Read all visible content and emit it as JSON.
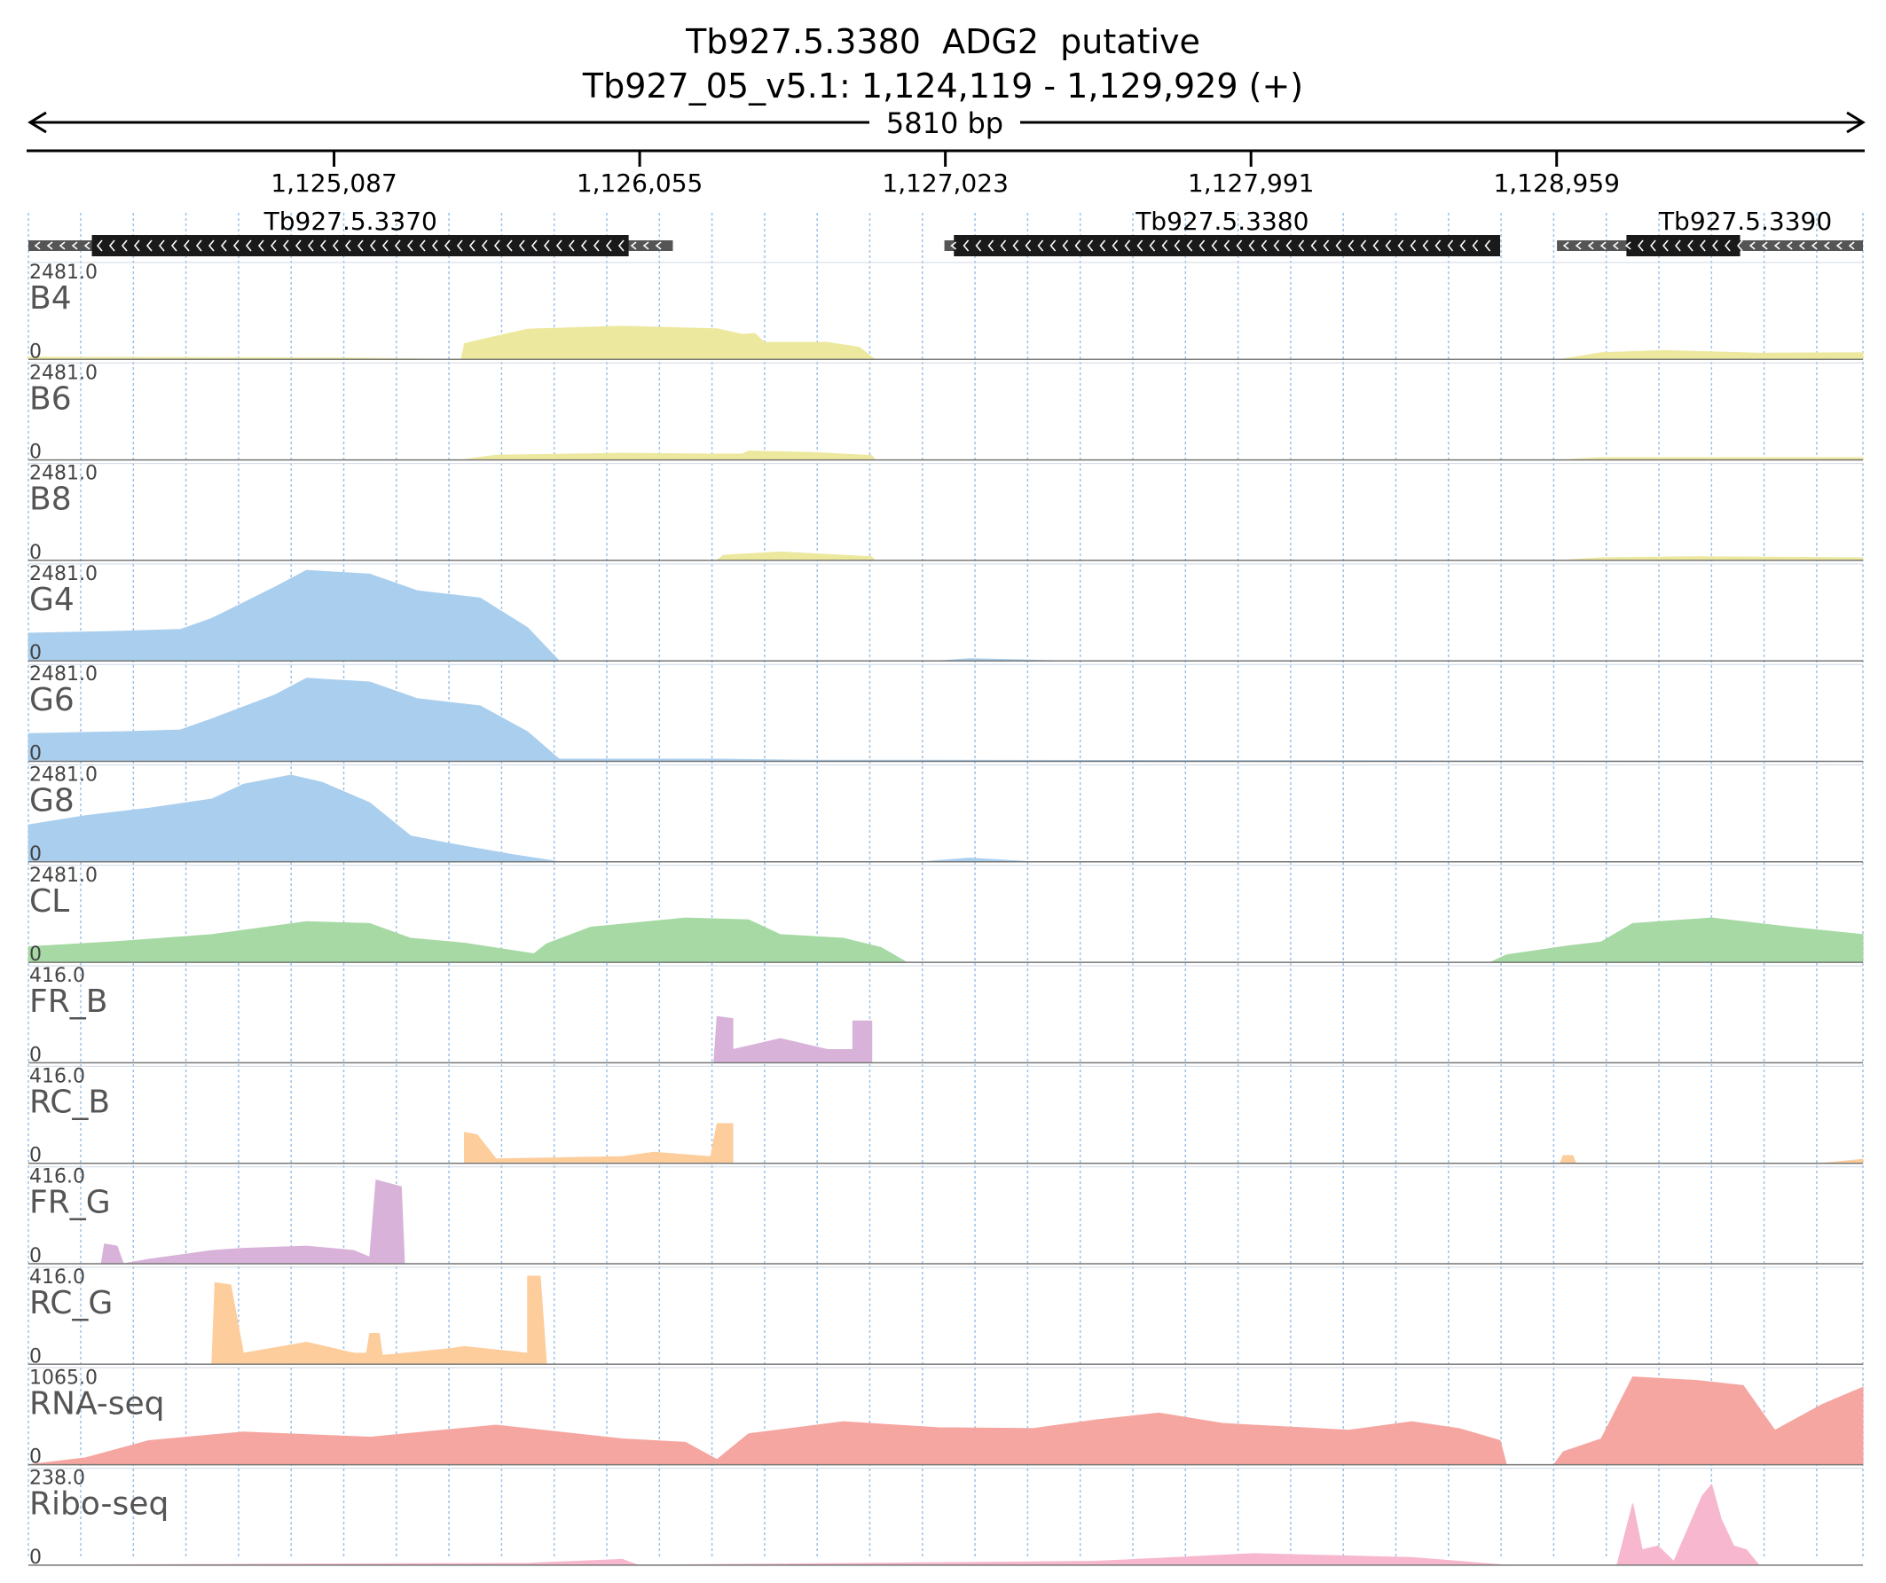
{
  "title": {
    "line1": "Tb927.5.3380  ADG2  putative",
    "line2": "Tb927_05_v5.1: 1,124,119 - 1,129,929 (+)"
  },
  "span_label": "5810 bp",
  "chart_data": {
    "type": "area",
    "region": {
      "chromosome": "Tb927_05_v5.1",
      "start": 1124119,
      "end": 1129929,
      "strand": "+"
    },
    "x_ticks": [
      1125087,
      1126055,
      1127023,
      1127991,
      1128959
    ],
    "x_tick_labels": [
      "1,125,087",
      "1,126,055",
      "1,127,023",
      "1,127,991",
      "1,128,959"
    ],
    "grid": true,
    "genes": [
      {
        "name": "Tb927.5.3370",
        "utr": [
          1124119,
          1126160
        ],
        "cds": [
          1124320,
          1126020
        ],
        "strand": "-"
      },
      {
        "name": "Tb927.5.3380",
        "utr": [
          1127020,
          1128780
        ],
        "cds": [
          1127050,
          1128780
        ],
        "strand": "-"
      },
      {
        "name": "Tb927.5.3390",
        "utr": [
          1128960,
          1129929
        ],
        "cds": [
          1129180,
          1129540
        ],
        "strand": "-"
      }
    ],
    "tracks": [
      {
        "name": "B4",
        "max_label": "2481.0",
        "min_label": "0",
        "color": "#ece89e",
        "points": [
          [
            1124119,
            60
          ],
          [
            1125100,
            40
          ],
          [
            1125500,
            0
          ],
          [
            1125490,
            0
          ],
          [
            1125500,
            430
          ],
          [
            1125700,
            820
          ],
          [
            1126000,
            900
          ],
          [
            1126300,
            830
          ],
          [
            1126380,
            680
          ],
          [
            1126420,
            700
          ],
          [
            1126450,
            460
          ],
          [
            1126650,
            460
          ],
          [
            1126750,
            330
          ],
          [
            1126800,
            0
          ],
          [
            1128970,
            0
          ],
          [
            1129100,
            180
          ],
          [
            1129300,
            240
          ],
          [
            1129600,
            170
          ],
          [
            1129929,
            180
          ]
        ]
      },
      {
        "name": "B6",
        "max_label": "2481.0",
        "min_label": "0",
        "color": "#ece89e",
        "points": [
          [
            1125490,
            0
          ],
          [
            1125600,
            130
          ],
          [
            1126000,
            180
          ],
          [
            1126300,
            160
          ],
          [
            1126380,
            160
          ],
          [
            1126400,
            240
          ],
          [
            1126600,
            200
          ],
          [
            1126790,
            120
          ],
          [
            1126800,
            0
          ],
          [
            1128970,
            0
          ],
          [
            1129100,
            60
          ],
          [
            1129929,
            60
          ]
        ]
      },
      {
        "name": "B8",
        "max_label": "2481.0",
        "min_label": "0",
        "color": "#ece89e",
        "points": [
          [
            1126300,
            0
          ],
          [
            1126320,
            140
          ],
          [
            1126500,
            230
          ],
          [
            1126650,
            160
          ],
          [
            1126790,
            100
          ],
          [
            1126800,
            0
          ],
          [
            1128970,
            0
          ],
          [
            1129100,
            70
          ],
          [
            1129400,
            100
          ],
          [
            1129929,
            70
          ]
        ]
      },
      {
        "name": "G4",
        "max_label": "2481.0",
        "min_label": "0",
        "color": "#aacfee",
        "points": [
          [
            1124119,
            750
          ],
          [
            1124400,
            800
          ],
          [
            1124600,
            850
          ],
          [
            1124700,
            1150
          ],
          [
            1124900,
            2000
          ],
          [
            1125000,
            2450
          ],
          [
            1125200,
            2350
          ],
          [
            1125350,
            1900
          ],
          [
            1125550,
            1700
          ],
          [
            1125700,
            900
          ],
          [
            1125800,
            0
          ],
          [
            1127000,
            0
          ],
          [
            1127100,
            60
          ],
          [
            1127400,
            0
          ],
          [
            1129929,
            0
          ]
        ]
      },
      {
        "name": "G6",
        "max_label": "2481.0",
        "min_label": "0",
        "color": "#aacfee",
        "points": [
          [
            1124119,
            750
          ],
          [
            1124400,
            800
          ],
          [
            1124600,
            850
          ],
          [
            1124700,
            1150
          ],
          [
            1124900,
            1800
          ],
          [
            1125000,
            2250
          ],
          [
            1125200,
            2150
          ],
          [
            1125350,
            1700
          ],
          [
            1125550,
            1500
          ],
          [
            1125700,
            800
          ],
          [
            1125800,
            60
          ],
          [
            1126300,
            60
          ],
          [
            1126600,
            30
          ],
          [
            1127000,
            30
          ],
          [
            1129929,
            0
          ]
        ]
      },
      {
        "name": "G8",
        "max_label": "2481.0",
        "min_label": "0",
        "color": "#aacfee",
        "points": [
          [
            1124119,
            1000
          ],
          [
            1124300,
            1250
          ],
          [
            1124500,
            1450
          ],
          [
            1124700,
            1700
          ],
          [
            1124800,
            2100
          ],
          [
            1124950,
            2350
          ],
          [
            1125050,
            2150
          ],
          [
            1125200,
            1600
          ],
          [
            1125330,
            700
          ],
          [
            1125450,
            500
          ],
          [
            1125650,
            200
          ],
          [
            1125800,
            0
          ],
          [
            1126950,
            0
          ],
          [
            1127100,
            100
          ],
          [
            1127300,
            0
          ],
          [
            1129929,
            0
          ]
        ]
      },
      {
        "name": "CL",
        "max_label": "2481.0",
        "min_label": "0",
        "color": "#a6d9a4",
        "points": [
          [
            1124119,
            420
          ],
          [
            1124400,
            560
          ],
          [
            1124700,
            750
          ],
          [
            1125000,
            1100
          ],
          [
            1125200,
            1050
          ],
          [
            1125330,
            650
          ],
          [
            1125500,
            520
          ],
          [
            1125720,
            230
          ],
          [
            1125760,
            500
          ],
          [
            1125900,
            950
          ],
          [
            1126200,
            1200
          ],
          [
            1126400,
            1150
          ],
          [
            1126500,
            750
          ],
          [
            1126700,
            650
          ],
          [
            1126820,
            400
          ],
          [
            1126900,
            0
          ],
          [
            1128750,
            0
          ],
          [
            1128800,
            200
          ],
          [
            1129000,
            450
          ],
          [
            1129100,
            550
          ],
          [
            1129200,
            1050
          ],
          [
            1129450,
            1200
          ],
          [
            1129700,
            950
          ],
          [
            1129929,
            750
          ]
        ]
      },
      {
        "name": "FR_B",
        "max_label": "416.0",
        "min_label": "0",
        "color": "#d8b2d8",
        "points": [
          [
            1126290,
            0
          ],
          [
            1126300,
            210
          ],
          [
            1126350,
            200
          ],
          [
            1126350,
            60
          ],
          [
            1126500,
            110
          ],
          [
            1126650,
            60
          ],
          [
            1126730,
            60
          ],
          [
            1126730,
            190
          ],
          [
            1126790,
            190
          ],
          [
            1126790,
            0
          ]
        ]
      },
      {
        "name": "RC_B",
        "max_label": "416.0",
        "min_label": "0",
        "color": "#fdcd9c",
        "points": [
          [
            1125500,
            0
          ],
          [
            1125500,
            140
          ],
          [
            1125540,
            130
          ],
          [
            1125600,
            20
          ],
          [
            1126000,
            30
          ],
          [
            1126100,
            50
          ],
          [
            1126280,
            30
          ],
          [
            1126300,
            180
          ],
          [
            1126350,
            180
          ],
          [
            1126350,
            0
          ],
          [
            1128970,
            0
          ],
          [
            1128980,
            35
          ],
          [
            1129010,
            35
          ],
          [
            1129020,
            0
          ],
          [
            1129800,
            0
          ],
          [
            1129929,
            18
          ]
        ]
      },
      {
        "name": "FR_G",
        "max_label": "416.0",
        "min_label": "0",
        "color": "#d8b2d8",
        "points": [
          [
            1124350,
            0
          ],
          [
            1124360,
            90
          ],
          [
            1124400,
            80
          ],
          [
            1124420,
            0
          ],
          [
            1124500,
            20
          ],
          [
            1124700,
            60
          ],
          [
            1124800,
            70
          ],
          [
            1125000,
            80
          ],
          [
            1125150,
            60
          ],
          [
            1125200,
            30
          ],
          [
            1125220,
            380
          ],
          [
            1125300,
            350
          ],
          [
            1125310,
            0
          ]
        ]
      },
      {
        "name": "RC_G",
        "max_label": "416.0",
        "min_label": "0",
        "color": "#fdcd9c",
        "points": [
          [
            1124700,
            0
          ],
          [
            1124710,
            370
          ],
          [
            1124760,
            360
          ],
          [
            1124800,
            50
          ],
          [
            1125000,
            100
          ],
          [
            1125150,
            50
          ],
          [
            1125190,
            50
          ],
          [
            1125200,
            140
          ],
          [
            1125230,
            140
          ],
          [
            1125240,
            40
          ],
          [
            1125450,
            70
          ],
          [
            1125500,
            80
          ],
          [
            1125700,
            50
          ],
          [
            1125700,
            400
          ],
          [
            1125740,
            400
          ],
          [
            1125760,
            0
          ]
        ]
      },
      {
        "name": "RNA-seq",
        "max_label": "1065.0",
        "min_label": "0",
        "color": "#f6a6a1",
        "points": [
          [
            1124119,
            0
          ],
          [
            1124300,
            80
          ],
          [
            1124500,
            280
          ],
          [
            1124800,
            380
          ],
          [
            1125200,
            320
          ],
          [
            1125600,
            460
          ],
          [
            1125800,
            380
          ],
          [
            1126000,
            300
          ],
          [
            1126200,
            260
          ],
          [
            1126300,
            60
          ],
          [
            1126400,
            360
          ],
          [
            1126700,
            500
          ],
          [
            1127000,
            430
          ],
          [
            1127300,
            420
          ],
          [
            1127500,
            520
          ],
          [
            1127700,
            600
          ],
          [
            1127900,
            480
          ],
          [
            1128100,
            440
          ],
          [
            1128300,
            400
          ],
          [
            1128500,
            500
          ],
          [
            1128650,
            420
          ],
          [
            1128780,
            280
          ],
          [
            1128800,
            0
          ],
          [
            1128950,
            0
          ],
          [
            1128980,
            150
          ],
          [
            1129100,
            300
          ],
          [
            1129200,
            1020
          ],
          [
            1129400,
            980
          ],
          [
            1129550,
            920
          ],
          [
            1129650,
            400
          ],
          [
            1129800,
            700
          ],
          [
            1129929,
            900
          ]
        ]
      },
      {
        "name": "Ribo-seq",
        "max_label": "238.0",
        "min_label": "0",
        "color": "#f7b8cf",
        "points": [
          [
            1124119,
            0
          ],
          [
            1125700,
            5
          ],
          [
            1126000,
            15
          ],
          [
            1126050,
            0
          ],
          [
            1127500,
            10
          ],
          [
            1128000,
            30
          ],
          [
            1128500,
            20
          ],
          [
            1128800,
            0
          ],
          [
            1129150,
            0
          ],
          [
            1129200,
            160
          ],
          [
            1129230,
            40
          ],
          [
            1129280,
            50
          ],
          [
            1129330,
            10
          ],
          [
            1129420,
            180
          ],
          [
            1129450,
            210
          ],
          [
            1129480,
            120
          ],
          [
            1129520,
            50
          ],
          [
            1129560,
            40
          ],
          [
            1129600,
            0
          ],
          [
            1129929,
            0
          ]
        ]
      }
    ]
  }
}
